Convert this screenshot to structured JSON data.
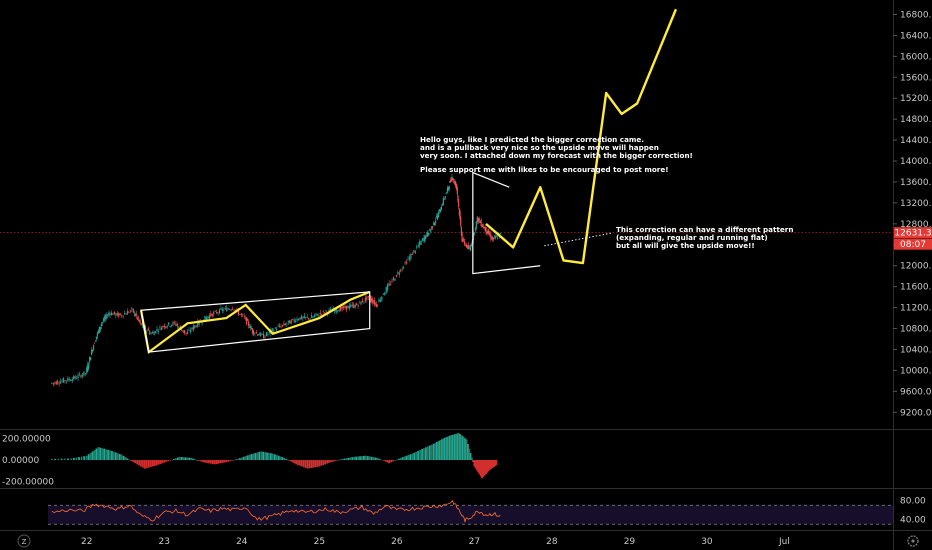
{
  "chart_data": [
    {
      "type": "line",
      "title": "",
      "xlabel": "",
      "ylabel": "",
      "x_ticks": [
        "22",
        "23",
        "24",
        "25",
        "26",
        "27",
        "28",
        "29",
        "30",
        "Jul"
      ],
      "y_ticks": [
        9200,
        9600,
        10000,
        10400,
        10800,
        11200,
        11600,
        12000,
        12400,
        12800,
        13200,
        13600,
        14000,
        14400,
        14800,
        15200,
        15600,
        16000,
        16400,
        16800
      ],
      "ylim": [
        8900,
        17000
      ],
      "xlim": [
        21.5,
        32.4
      ],
      "grid": false,
      "price_series": {
        "name": "",
        "x": [
          21.55,
          21.7,
          21.85,
          22.0,
          22.1,
          22.2,
          22.3,
          22.45,
          22.6,
          22.7,
          22.85,
          23.0,
          23.15,
          23.3,
          23.45,
          23.6,
          23.75,
          23.9,
          24.05,
          24.15,
          24.3,
          24.45,
          24.6,
          24.75,
          24.9,
          25.05,
          25.2,
          25.35,
          25.5,
          25.65,
          25.75,
          25.9,
          26.05,
          26.2,
          26.35,
          26.45,
          26.55,
          26.65,
          26.72,
          26.78,
          26.85,
          26.95,
          27.05,
          27.15,
          27.25,
          27.35
        ],
        "y": [
          9750,
          9800,
          9850,
          9950,
          10500,
          10900,
          11100,
          11050,
          11150,
          10900,
          10700,
          10850,
          10900,
          10700,
          10900,
          11050,
          11150,
          11200,
          11000,
          10750,
          10650,
          10800,
          10900,
          11000,
          11000,
          11100,
          11150,
          11200,
          11250,
          11400,
          11250,
          11600,
          11900,
          12200,
          12500,
          12700,
          13000,
          13400,
          13700,
          13500,
          12500,
          12300,
          12900,
          12700,
          12500,
          12600
        ]
      },
      "current_price": 12631.3,
      "price_label": "12631.3",
      "countdown_label": "08:07",
      "forecast_path": {
        "x": [
          27.15,
          27.5,
          27.85,
          28.15,
          28.4,
          28.7,
          28.9,
          29.1,
          29.6
        ],
        "y": [
          12800,
          12350,
          13500,
          12100,
          12050,
          15300,
          14900,
          15100,
          16900
        ]
      },
      "channel_pattern": {
        "x": [
          22.7,
          22.8,
          23.3,
          23.8,
          24.05,
          24.4,
          25.0,
          25.4,
          25.65
        ],
        "y": [
          11150,
          10350,
          10900,
          11000,
          11250,
          10700,
          11000,
          11350,
          11500
        ]
      },
      "annotations": {
        "main_note": [
          "Hello guys, like I predicted the bigger correction came.",
          "and is a pullback very nice so the upside move will happen",
          "very soon. I attached down my forecast with the bigger correction!",
          "",
          "Please support me with likes to be encouraged to post more!"
        ],
        "side_note": [
          "This correction can have a different  pattern",
          "(expanding, regular and running flat)",
          "but all will give the upside move!!"
        ]
      }
    },
    {
      "type": "bar",
      "title": "",
      "y_ticks": [
        200,
        0,
        -200
      ],
      "y_tick_labels": [
        "200.00000",
        "0.00000",
        "-200.00000"
      ],
      "ylim": [
        -250,
        260
      ],
      "x": [
        21.55,
        21.8,
        22.0,
        22.15,
        22.3,
        22.45,
        22.6,
        22.75,
        22.9,
        23.05,
        23.2,
        23.35,
        23.5,
        23.65,
        23.8,
        23.95,
        24.1,
        24.25,
        24.4,
        24.55,
        24.7,
        24.85,
        25.0,
        25.15,
        25.3,
        25.45,
        25.6,
        25.75,
        25.9,
        26.05,
        26.2,
        26.35,
        26.5,
        26.6,
        26.7,
        26.8,
        26.9,
        27.0,
        27.1,
        27.2,
        27.3
      ],
      "values": [
        10,
        15,
        40,
        120,
        90,
        50,
        -20,
        -80,
        -50,
        -10,
        30,
        20,
        -20,
        -40,
        -20,
        10,
        50,
        80,
        60,
        20,
        -40,
        -80,
        -60,
        -20,
        10,
        30,
        40,
        20,
        -30,
        20,
        60,
        110,
        160,
        200,
        230,
        250,
        190,
        -60,
        -170,
        -90,
        -40
      ]
    },
    {
      "type": "line",
      "title": "",
      "y_ticks": [
        80,
        40
      ],
      "y_tick_labels": [
        "80.00",
        "40.00"
      ],
      "ylim": [
        20,
        100
      ],
      "levels": [
        70,
        30
      ],
      "x": [
        21.55,
        21.75,
        21.95,
        22.1,
        22.25,
        22.4,
        22.55,
        22.7,
        22.85,
        23.0,
        23.15,
        23.3,
        23.45,
        23.6,
        23.75,
        23.9,
        24.05,
        24.2,
        24.35,
        24.5,
        24.65,
        24.8,
        24.95,
        25.1,
        25.25,
        25.4,
        25.55,
        25.7,
        25.85,
        26.0,
        26.15,
        26.3,
        26.45,
        26.6,
        26.72,
        26.8,
        26.88,
        26.95,
        27.05,
        27.15,
        27.25,
        27.35
      ],
      "values": [
        55,
        60,
        58,
        72,
        68,
        62,
        70,
        48,
        40,
        55,
        58,
        50,
        62,
        58,
        63,
        60,
        66,
        40,
        45,
        52,
        60,
        55,
        58,
        62,
        55,
        60,
        66,
        52,
        68,
        60,
        62,
        65,
        68,
        70,
        78,
        60,
        38,
        45,
        58,
        50,
        52,
        46
      ]
    }
  ]
}
